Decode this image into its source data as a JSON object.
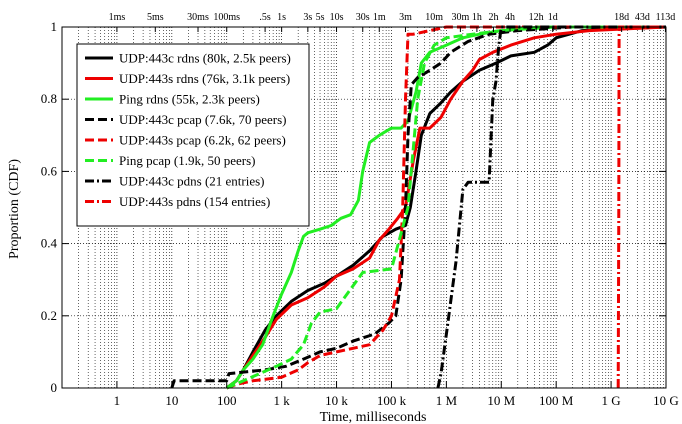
{
  "chart_data": {
    "type": "line",
    "xlabel": "Time, milliseconds",
    "ylabel": "Proportion (CDF)",
    "x_scale": "log",
    "xlim": [
      0.1,
      10000000000
    ],
    "ylim": [
      0,
      1
    ],
    "x_ticks": [
      {
        "value": 1,
        "label": "1"
      },
      {
        "value": 10,
        "label": "10"
      },
      {
        "value": 100,
        "label": "100"
      },
      {
        "value": 1000,
        "label": "1 k"
      },
      {
        "value": 10000,
        "label": "10 k"
      },
      {
        "value": 100000,
        "label": "100 k"
      },
      {
        "value": 1000000,
        "label": "1 M"
      },
      {
        "value": 10000000,
        "label": "10 M"
      },
      {
        "value": 100000000,
        "label": "100 M"
      },
      {
        "value": 1000000000,
        "label": "1 G"
      },
      {
        "value": 10000000000,
        "label": "10 G"
      }
    ],
    "y_ticks": [
      {
        "value": 0,
        "label": "0"
      },
      {
        "value": 0.2,
        "label": "0.2"
      },
      {
        "value": 0.4,
        "label": "0.4"
      },
      {
        "value": 0.6,
        "label": "0.6"
      },
      {
        "value": 0.8,
        "label": "0.8"
      },
      {
        "value": 1,
        "label": "1"
      }
    ],
    "top_ticks": [
      {
        "value": 1,
        "label": "1ms"
      },
      {
        "value": 5,
        "label": "5ms"
      },
      {
        "value": 30,
        "label": "30ms"
      },
      {
        "value": 100,
        "label": "100ms"
      },
      {
        "value": 500,
        "label": ".5s"
      },
      {
        "value": 1000,
        "label": "1s"
      },
      {
        "value": 3000,
        "label": "3s"
      },
      {
        "value": 5000,
        "label": "5s"
      },
      {
        "value": 10000,
        "label": "10s"
      },
      {
        "value": 30000,
        "label": "30s"
      },
      {
        "value": 60000,
        "label": "1m"
      },
      {
        "value": 180000,
        "label": "3m"
      },
      {
        "value": 600000,
        "label": "10m"
      },
      {
        "value": 1800000,
        "label": "30m"
      },
      {
        "value": 3600000,
        "label": "1h"
      },
      {
        "value": 7200000,
        "label": "2h"
      },
      {
        "value": 14400000,
        "label": "4h"
      },
      {
        "value": 43200000,
        "label": "12h"
      },
      {
        "value": 86400000,
        "label": "1d"
      },
      {
        "value": 1555200000,
        "label": "18d"
      },
      {
        "value": 3715200000,
        "label": "43d"
      },
      {
        "value": 9763200000,
        "label": "113d"
      }
    ],
    "grid": true,
    "legend_position": "top-left",
    "series": [
      {
        "name": "UDP:443c rdns (80k, 2.5k peers)",
        "color": "#000000",
        "dash": "solid",
        "points": [
          [
            100,
            0
          ],
          [
            150,
            0.02
          ],
          [
            200,
            0.05
          ],
          [
            300,
            0.1
          ],
          [
            500,
            0.16
          ],
          [
            800,
            0.2
          ],
          [
            1500,
            0.24
          ],
          [
            3000,
            0.27
          ],
          [
            6000,
            0.29
          ],
          [
            10000,
            0.31
          ],
          [
            20000,
            0.34
          ],
          [
            40000,
            0.38
          ],
          [
            70000,
            0.42
          ],
          [
            120000,
            0.44
          ],
          [
            180000,
            0.45
          ],
          [
            220000,
            0.5
          ],
          [
            280000,
            0.6
          ],
          [
            350000,
            0.7
          ],
          [
            500000,
            0.76
          ],
          [
            800000,
            0.79
          ],
          [
            1200000,
            0.82
          ],
          [
            2000000,
            0.85
          ],
          [
            4000000,
            0.88
          ],
          [
            8000000,
            0.9
          ],
          [
            15000000,
            0.92
          ],
          [
            40000000,
            0.93
          ],
          [
            70000000,
            0.95
          ],
          [
            100000000,
            0.97
          ],
          [
            300000000,
            0.99
          ],
          [
            1000000000,
            0.995
          ],
          [
            10000000000,
            1
          ]
        ]
      },
      {
        "name": "UDP:443s rdns (76k, 3.1k peers)",
        "color": "#ee0000",
        "dash": "solid",
        "points": [
          [
            100,
            0
          ],
          [
            150,
            0.02
          ],
          [
            200,
            0.05
          ],
          [
            300,
            0.09
          ],
          [
            500,
            0.14
          ],
          [
            800,
            0.19
          ],
          [
            1500,
            0.23
          ],
          [
            3000,
            0.25
          ],
          [
            6000,
            0.28
          ],
          [
            10000,
            0.31
          ],
          [
            20000,
            0.33
          ],
          [
            40000,
            0.36
          ],
          [
            60000,
            0.41
          ],
          [
            90000,
            0.44
          ],
          [
            130000,
            0.47
          ],
          [
            180000,
            0.5
          ],
          [
            250000,
            0.63
          ],
          [
            330000,
            0.72
          ],
          [
            500000,
            0.72
          ],
          [
            800000,
            0.75
          ],
          [
            1200000,
            0.8
          ],
          [
            2000000,
            0.85
          ],
          [
            3000000,
            0.88
          ],
          [
            4000000,
            0.91
          ],
          [
            7000000,
            0.93
          ],
          [
            15000000,
            0.95
          ],
          [
            40000000,
            0.97
          ],
          [
            100000000,
            0.98
          ],
          [
            400000000,
            0.99
          ],
          [
            10000000000,
            1
          ]
        ]
      },
      {
        "name": "Ping rdns (55k, 2.3k peers)",
        "color": "#22ee22",
        "dash": "solid",
        "points": [
          [
            100,
            0
          ],
          [
            150,
            0.02
          ],
          [
            200,
            0.05
          ],
          [
            300,
            0.08
          ],
          [
            450,
            0.12
          ],
          [
            700,
            0.2
          ],
          [
            1000,
            0.26
          ],
          [
            1500,
            0.32
          ],
          [
            2000,
            0.38
          ],
          [
            2500,
            0.42
          ],
          [
            3000,
            0.43
          ],
          [
            5000,
            0.44
          ],
          [
            8000,
            0.45
          ],
          [
            12000,
            0.47
          ],
          [
            18000,
            0.48
          ],
          [
            25000,
            0.52
          ],
          [
            30000,
            0.6
          ],
          [
            40000,
            0.68
          ],
          [
            60000,
            0.7
          ],
          [
            100000,
            0.72
          ],
          [
            150000,
            0.72
          ],
          [
            200000,
            0.74
          ],
          [
            280000,
            0.82
          ],
          [
            350000,
            0.9
          ],
          [
            500000,
            0.93
          ],
          [
            1000000,
            0.95
          ],
          [
            2000000,
            0.97
          ],
          [
            4000000,
            0.98
          ],
          [
            10000000,
            0.99
          ],
          [
            100000000,
            1
          ],
          [
            10000000000,
            1
          ]
        ]
      },
      {
        "name": "UDP:443c pcap (7.6k, 70 peers)",
        "color": "#000000",
        "dash": "dashed",
        "points": [
          [
            10,
            0
          ],
          [
            11,
            0.02
          ],
          [
            100,
            0.02
          ],
          [
            110,
            0.04
          ],
          [
            500,
            0.05
          ],
          [
            1200,
            0.06
          ],
          [
            2500,
            0.08
          ],
          [
            5000,
            0.1
          ],
          [
            10000,
            0.11
          ],
          [
            20000,
            0.13
          ],
          [
            50000,
            0.15
          ],
          [
            90000,
            0.18
          ],
          [
            120000,
            0.2
          ],
          [
            150000,
            0.3
          ],
          [
            180000,
            0.5
          ],
          [
            200000,
            0.7
          ],
          [
            230000,
            0.84
          ],
          [
            300000,
            0.86
          ],
          [
            500000,
            0.88
          ],
          [
            800000,
            0.9
          ],
          [
            1200000,
            0.93
          ],
          [
            2500000,
            0.96
          ],
          [
            6000000,
            0.98
          ],
          [
            20000000,
            0.99
          ],
          [
            200000000,
            1
          ],
          [
            10000000000,
            1
          ]
        ]
      },
      {
        "name": "UDP:443s pcap (6.2k, 62 peers)",
        "color": "#ee0000",
        "dash": "dashed",
        "points": [
          [
            100,
            0
          ],
          [
            150,
            0.01
          ],
          [
            300,
            0.02
          ],
          [
            1000,
            0.03
          ],
          [
            2000,
            0.05
          ],
          [
            3000,
            0.07
          ],
          [
            5000,
            0.09
          ],
          [
            10000,
            0.1
          ],
          [
            20000,
            0.11
          ],
          [
            40000,
            0.12
          ],
          [
            70000,
            0.16
          ],
          [
            100000,
            0.2
          ],
          [
            140000,
            0.3
          ],
          [
            160000,
            0.5
          ],
          [
            180000,
            0.8
          ],
          [
            200000,
            0.98
          ],
          [
            250000,
            0.98
          ],
          [
            500000,
            0.99
          ],
          [
            1000000,
            1
          ],
          [
            10000000000,
            1
          ]
        ]
      },
      {
        "name": "Ping pcap (1.9k, 50 peers)",
        "color": "#22ee22",
        "dash": "dashed",
        "points": [
          [
            100,
            0
          ],
          [
            200,
            0.02
          ],
          [
            400,
            0.04
          ],
          [
            800,
            0.06
          ],
          [
            1500,
            0.08
          ],
          [
            2500,
            0.12
          ],
          [
            3500,
            0.18
          ],
          [
            5000,
            0.21
          ],
          [
            10000,
            0.22
          ],
          [
            30000,
            0.32
          ],
          [
            100000,
            0.33
          ],
          [
            200000,
            0.5
          ],
          [
            300000,
            0.8
          ],
          [
            400000,
            0.9
          ],
          [
            600000,
            0.95
          ],
          [
            1000000,
            0.97
          ],
          [
            3000000,
            0.98
          ],
          [
            10000000,
            0.99
          ],
          [
            50000000,
            1
          ],
          [
            10000000000,
            1
          ]
        ]
      },
      {
        "name": "UDP:443c pdns (21 entries)",
        "color": "#000000",
        "dash": "dashdot",
        "points": [
          [
            700000,
            0
          ],
          [
            800000,
            0.04
          ],
          [
            1000000,
            0.15
          ],
          [
            1500000,
            0.35
          ],
          [
            2000000,
            0.55
          ],
          [
            2500000,
            0.57
          ],
          [
            6000000,
            0.57
          ],
          [
            7000000,
            0.8
          ],
          [
            8000000,
            0.85
          ],
          [
            9000000,
            0.95
          ],
          [
            10000000,
            1
          ],
          [
            10000000000,
            1
          ]
        ]
      },
      {
        "name": "UDP:443s pdns (154 entries)",
        "color": "#ee0000",
        "dash": "dashdot",
        "points": [
          [
            1350000000,
            0
          ],
          [
            1380000000,
            0.5
          ],
          [
            1400000000,
            0.98
          ],
          [
            1420000000,
            1
          ],
          [
            10000000000,
            1
          ]
        ]
      }
    ]
  }
}
